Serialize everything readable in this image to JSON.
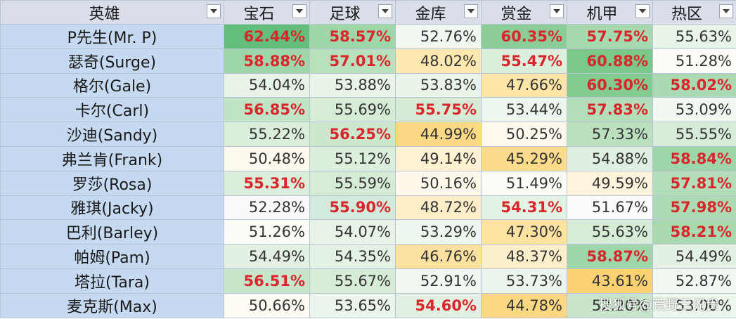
{
  "table": {
    "columns": [
      "英雄",
      "宝石",
      "足球",
      "金库",
      "赏金",
      "机甲",
      "热区"
    ],
    "rows": [
      {
        "hero": "P先生(Mr. P)",
        "values": [
          "62.44%",
          "58.57%",
          "52.76%",
          "60.35%",
          "57.75%",
          "55.63%"
        ],
        "bold": [
          true,
          true,
          false,
          true,
          true,
          false
        ],
        "colors": [
          "#63be7b",
          "#9ed6a8",
          "#f1f8f1",
          "#8ccd97",
          "#a7d9ae",
          "#e8f4e8"
        ]
      },
      {
        "hero": "瑟奇(Surge)",
        "values": [
          "58.88%",
          "57.01%",
          "48.02%",
          "55.47%",
          "60.88%",
          "51.28%"
        ],
        "bold": [
          true,
          true,
          false,
          true,
          true,
          false
        ],
        "colors": [
          "#9fd6a9",
          "#b8e0bd",
          "#fde8b0",
          "#dcefdc",
          "#7bc889",
          "#fdfcf6"
        ]
      },
      {
        "hero": "格尔(Gale)",
        "values": [
          "54.04%",
          "53.88%",
          "53.83%",
          "47.66%",
          "60.30%",
          "58.02%"
        ],
        "bold": [
          false,
          false,
          false,
          false,
          true,
          true
        ],
        "colors": [
          "#e7f3e7",
          "#e9f4e9",
          "#e9f4e9",
          "#fde5a8",
          "#83cb90",
          "#aadab1"
        ]
      },
      {
        "hero": "卡尔(Carl)",
        "values": [
          "56.85%",
          "55.69%",
          "55.75%",
          "53.44%",
          "57.83%",
          "53.09%"
        ],
        "bold": [
          true,
          false,
          true,
          false,
          true,
          false
        ],
        "colors": [
          "#c2e4c6",
          "#d6ecd7",
          "#d5ebd6",
          "#edf6ed",
          "#b4deba",
          "#f1f8f1"
        ]
      },
      {
        "hero": "沙迪(Sandy)",
        "values": [
          "55.22%",
          "56.25%",
          "44.99%",
          "50.25%",
          "57.33%",
          "55.55%"
        ],
        "bold": [
          false,
          true,
          false,
          false,
          false,
          false
        ],
        "colors": [
          "#dbeedb",
          "#cbe7ce",
          "#fcd985",
          "#fef9ec",
          "#bae0be",
          "#d7ecd8"
        ]
      },
      {
        "hero": "弗兰肯(Frank)",
        "values": [
          "50.48%",
          "55.12%",
          "49.14%",
          "45.29%",
          "54.88%",
          "58.84%"
        ],
        "bold": [
          false,
          false,
          false,
          false,
          false,
          true
        ],
        "colors": [
          "#fefaef",
          "#dceedc",
          "#fef2d3",
          "#fcdb8b",
          "#e0f0e0",
          "#9fd6a9"
        ]
      },
      {
        "hero": "罗莎(Rosa)",
        "values": [
          "55.31%",
          "55.59%",
          "50.16%",
          "51.49%",
          "49.59%",
          "57.81%"
        ],
        "bold": [
          true,
          false,
          false,
          false,
          false,
          true
        ],
        "colors": [
          "#dbeedb",
          "#d6ecd7",
          "#fef8ea",
          "#fdfdf8",
          "#fef5dc",
          "#b4deba"
        ]
      },
      {
        "hero": "雅琪(Jacky)",
        "values": [
          "52.28%",
          "55.90%",
          "48.72%",
          "54.31%",
          "51.67%",
          "57.98%"
        ],
        "bold": [
          false,
          true,
          false,
          true,
          false,
          true
        ],
        "colors": [
          "#f8fbf7",
          "#d2eadc",
          "#fdeec8",
          "#e4f2e4",
          "#fbfdfa",
          "#acdbb3"
        ]
      },
      {
        "hero": "巴利(Barley)",
        "values": [
          "51.26%",
          "54.07%",
          "53.29%",
          "47.30%",
          "55.63%",
          "58.21%"
        ],
        "bold": [
          false,
          false,
          false,
          false,
          false,
          true
        ],
        "colors": [
          "#fdfcf6",
          "#e6f3e6",
          "#eef7ee",
          "#fde2a0",
          "#d6ecd7",
          "#a8d9af"
        ]
      },
      {
        "hero": "帕姆(Pam)",
        "values": [
          "54.49%",
          "54.35%",
          "46.76%",
          "48.37%",
          "58.87%",
          "54.49%"
        ],
        "bold": [
          false,
          false,
          false,
          false,
          true,
          false
        ],
        "colors": [
          "#e2f1e2",
          "#e4f2e4",
          "#fde1a0",
          "#fdefca",
          "#9fd6a9",
          "#e2f1e2"
        ]
      },
      {
        "hero": "塔拉(Tara)",
        "values": [
          "56.51%",
          "55.67%",
          "52.91%",
          "53.73%",
          "43.61%",
          "52.87%"
        ],
        "bold": [
          true,
          false,
          false,
          false,
          false,
          false
        ],
        "colors": [
          "#c6e5ca",
          "#d6ecd7",
          "#f0f7f0",
          "#ebf5eb",
          "#fbd171",
          "#f1f8f1"
        ]
      },
      {
        "hero": "麦克斯(Max)",
        "values": [
          "50.66%",
          "53.65%",
          "54.60%",
          "44.78%",
          "52.20%",
          "53.00%"
        ],
        "bold": [
          false,
          false,
          true,
          false,
          false,
          false
        ],
        "colors": [
          "#fefbf3",
          "#ebf5eb",
          "#e1f0e1",
          "#fcd882",
          "#c9e6cc",
          "#ecf6ec"
        ]
      }
    ]
  },
  "watermark": "搜狐号@荒野三兄贵",
  "icons": {
    "filter_dropdown": "chevron-down-icon"
  }
}
